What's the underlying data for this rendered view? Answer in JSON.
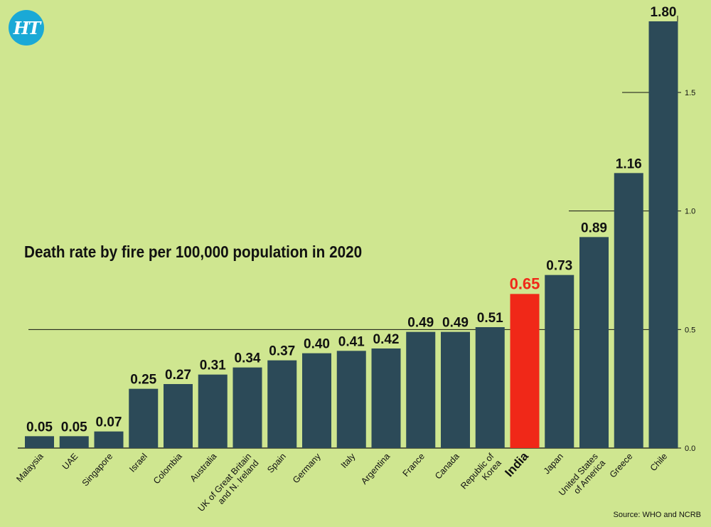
{
  "logo": {
    "text": "HT"
  },
  "source": "Source: WHO and NCRB",
  "chart_data": {
    "type": "bar",
    "title": "Death rate by fire per 100,000 population in 2020",
    "categories": [
      "Malaysia",
      "UAE",
      "Singapore",
      "Israel",
      "Colombia",
      "Australia",
      "UK of Great Britain and N. Ireland",
      "Spain",
      "Germany",
      "Italy",
      "Argentina",
      "France",
      "Canada",
      "Republic of Korea",
      "India",
      "Japan",
      "United States of America",
      "Greece",
      "Chile"
    ],
    "values": [
      0.05,
      0.05,
      0.07,
      0.25,
      0.27,
      0.31,
      0.34,
      0.37,
      0.4,
      0.41,
      0.42,
      0.49,
      0.49,
      0.51,
      0.65,
      0.73,
      0.89,
      1.16,
      1.8
    ],
    "value_labels": [
      "0.05",
      "0.05",
      "0.07",
      "0.25",
      "0.27",
      "0.31",
      "0.34",
      "0.37",
      "0.40",
      "0.41",
      "0.42",
      "0.49",
      "0.49",
      "0.51",
      "0.65",
      "0.73",
      "0.89",
      "1.16",
      "1.80"
    ],
    "highlight": "India",
    "ylim": [
      0,
      1.8
    ],
    "yticks": [
      0,
      0.5,
      1.0,
      1.5
    ],
    "ytick_labels": [
      "0.0",
      "0.5",
      "1.0",
      "1.5"
    ],
    "y_axis_side": "right",
    "grid": true,
    "colors": {
      "bar": "#2c4a58",
      "highlight": "#f02818",
      "background": "#cfe690",
      "text": "#111111"
    }
  }
}
